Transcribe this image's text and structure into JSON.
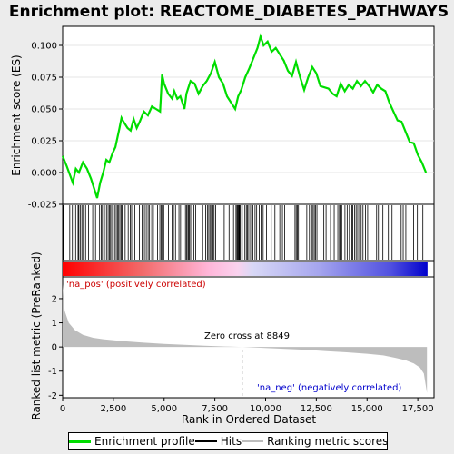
{
  "chart_data": {
    "type": "line",
    "title": "Enrichment plot: REACTOME_DIABETES_PATHWAYS",
    "xlabel": "Rank in Ordered Dataset",
    "ylabel_top": "Enrichment score (ES)",
    "ylabel_bottom": "Ranked list metric (PreRanked)",
    "xlim": [
      0,
      18300
    ],
    "es_ylim": [
      -0.025,
      0.115
    ],
    "metric_ylim": [
      -2.1,
      2.9
    ],
    "x_ticks": [
      0,
      2500,
      5000,
      7500,
      10000,
      12500,
      15000,
      17500
    ],
    "x_tick_labels": [
      "0",
      "2,500",
      "5,000",
      "7,500",
      "10,000",
      "12,500",
      "15,000",
      "17,500"
    ],
    "es_ticks": [
      -0.025,
      0,
      0.025,
      0.05,
      0.075,
      0.1
    ],
    "es_tick_labels": [
      "-0.025",
      "0.000",
      "0.025",
      "0.050",
      "0.075",
      "0.100"
    ],
    "metric_ticks": [
      -2,
      -1,
      0,
      1,
      2
    ],
    "metric_tick_labels": [
      "-2",
      "-1",
      "0",
      "1",
      "2"
    ],
    "zero_cross": 8849,
    "annotations": {
      "pos": "'na_pos' (positively correlated)",
      "neg": "'na_neg' (negatively correlated)",
      "zero": "Zero cross at 8849"
    },
    "enrichment_profile": {
      "x": [
        0,
        200,
        500,
        650,
        800,
        1000,
        1200,
        1400,
        1700,
        1850,
        2000,
        2150,
        2300,
        2450,
        2600,
        2800,
        2900,
        3000,
        3200,
        3350,
        3500,
        3650,
        3800,
        4000,
        4200,
        4400,
        4600,
        4800,
        4900,
        5000,
        5200,
        5400,
        5500,
        5650,
        5800,
        6000,
        6100,
        6300,
        6500,
        6700,
        6900,
        7100,
        7300,
        7500,
        7700,
        7900,
        8100,
        8300,
        8500,
        8650,
        8800,
        9000,
        9200,
        9400,
        9600,
        9750,
        9900,
        10100,
        10300,
        10500,
        10700,
        10900,
        11100,
        11300,
        11500,
        11700,
        11900,
        12100,
        12300,
        12500,
        12700,
        12900,
        13100,
        13300,
        13500,
        13700,
        13900,
        14100,
        14300,
        14500,
        14700,
        14900,
        15100,
        15300,
        15500,
        15700,
        15900,
        16100,
        16300,
        16500,
        16700,
        16900,
        17100,
        17300,
        17500,
        17700,
        17900
      ],
      "y": [
        0.013,
        0.005,
        -0.008,
        0.003,
        0.0,
        0.008,
        0.003,
        -0.005,
        -0.02,
        -0.008,
        0.0,
        0.01,
        0.008,
        0.015,
        0.02,
        0.035,
        0.043,
        0.04,
        0.035,
        0.033,
        0.042,
        0.035,
        0.04,
        0.048,
        0.045,
        0.052,
        0.05,
        0.048,
        0.077,
        0.07,
        0.062,
        0.058,
        0.064,
        0.058,
        0.06,
        0.05,
        0.062,
        0.072,
        0.07,
        0.062,
        0.068,
        0.072,
        0.078,
        0.087,
        0.075,
        0.07,
        0.06,
        0.055,
        0.05,
        0.06,
        0.065,
        0.075,
        0.082,
        0.09,
        0.098,
        0.107,
        0.1,
        0.103,
        0.095,
        0.098,
        0.093,
        0.088,
        0.08,
        0.076,
        0.087,
        0.075,
        0.065,
        0.075,
        0.083,
        0.078,
        0.068,
        0.067,
        0.066,
        0.062,
        0.06,
        0.07,
        0.064,
        0.069,
        0.066,
        0.072,
        0.068,
        0.072,
        0.068,
        0.063,
        0.069,
        0.066,
        0.064,
        0.055,
        0.048,
        0.041,
        0.04,
        0.032,
        0.024,
        0.023,
        0.014,
        0.008,
        0.0
      ]
    },
    "hits": [
      30,
      350,
      480,
      560,
      640,
      760,
      800,
      880,
      950,
      1020,
      1130,
      1280,
      1480,
      1620,
      1820,
      1900,
      1960,
      2060,
      2160,
      2240,
      2300,
      2360,
      2420,
      2560,
      2640,
      2700,
      2760,
      2820,
      2880,
      2930,
      2980,
      3080,
      3230,
      3330,
      3400,
      3560,
      3780,
      3920,
      4030,
      4120,
      4210,
      4280,
      4390,
      4470,
      4680,
      4790,
      4860,
      4910,
      4980,
      5210,
      5390,
      5460,
      5560,
      5730,
      5810,
      6050,
      6110,
      6170,
      6210,
      6250,
      6310,
      6460,
      6560,
      6900,
      7050,
      7130,
      7200,
      7260,
      7330,
      7410,
      7460,
      7540,
      7960,
      8200,
      8420,
      8540,
      8590,
      8630,
      8660,
      8690,
      8720,
      8760,
      8850,
      8980,
      9050,
      9110,
      9170,
      9260,
      9370,
      9480,
      9560,
      9690,
      9780,
      9880,
      10040,
      10280,
      10460,
      10700,
      10830,
      10940,
      11450,
      11510,
      11570,
      11620,
      12030,
      12160,
      12270,
      12340,
      12400,
      12460,
      12530,
      12870,
      12980,
      13200,
      13380,
      13560,
      13640,
      13680,
      13750,
      13910,
      14020,
      14130,
      14250,
      14300,
      14380,
      14460,
      14540,
      14630,
      14710,
      14800,
      14920,
      15030,
      15470,
      15560,
      15640,
      15780,
      16050,
      16230,
      16680,
      16780,
      16910,
      17290,
      17480,
      17750
    ],
    "metric_curve": {
      "x": [
        0,
        100,
        300,
        600,
        1000,
        1500,
        2000,
        3000,
        4000,
        5000,
        6000,
        7000,
        8000,
        8849,
        10000,
        11000,
        12000,
        13000,
        14000,
        15000,
        15800,
        16400,
        16900,
        17300,
        17600,
        17800,
        17950
      ],
      "y": [
        2.6,
        1.5,
        1.0,
        0.7,
        0.5,
        0.38,
        0.32,
        0.24,
        0.18,
        0.13,
        0.09,
        0.05,
        0.02,
        0.0,
        -0.04,
        -0.08,
        -0.12,
        -0.17,
        -0.22,
        -0.28,
        -0.35,
        -0.45,
        -0.55,
        -0.68,
        -0.85,
        -1.1,
        -1.9
      ]
    }
  }
}
